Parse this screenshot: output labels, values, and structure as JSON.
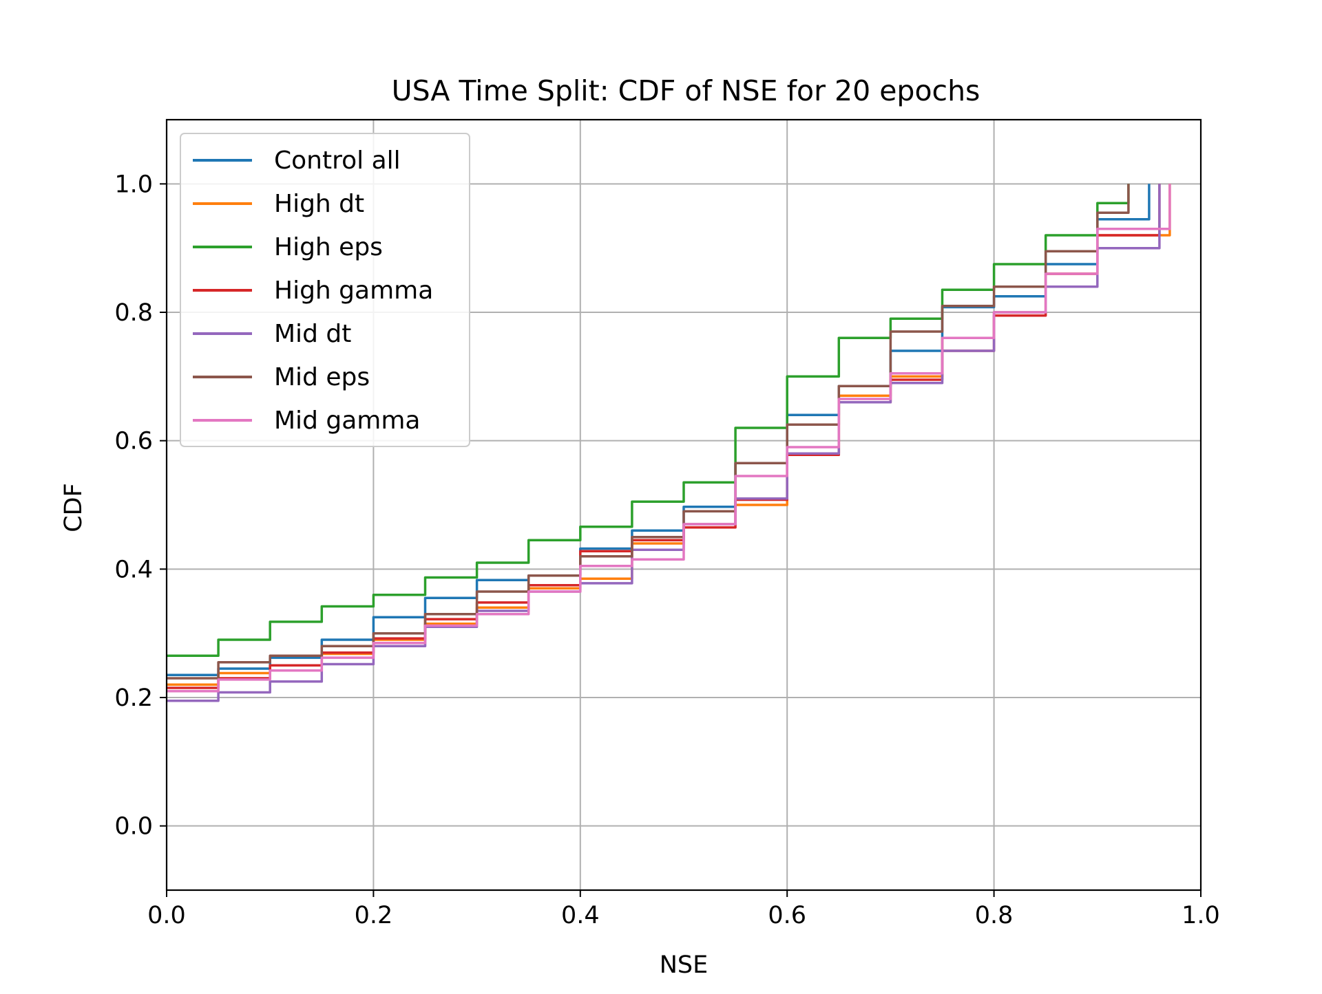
{
  "chart_data": {
    "type": "line",
    "title": "USA Time Split: CDF of NSE for 20 epochs",
    "xlabel": "NSE",
    "ylabel": "CDF",
    "xlim": [
      0.0,
      1.0
    ],
    "ylim": [
      -0.1,
      1.1
    ],
    "xticks": [
      0.0,
      0.2,
      0.4,
      0.6,
      0.8,
      1.0
    ],
    "xtick_labels": [
      "0.0",
      "0.2",
      "0.4",
      "0.6",
      "0.8",
      "1.0"
    ],
    "yticks": [
      0.0,
      0.2,
      0.4,
      0.6,
      0.8,
      1.0
    ],
    "ytick_labels": [
      "0.0",
      "0.2",
      "0.4",
      "0.6",
      "0.8",
      "1.0"
    ],
    "grid": true,
    "legend_position": "upper-left",
    "series": [
      {
        "name": "Control all",
        "color": "#1f77b4",
        "x": [
          0.0,
          0.05,
          0.1,
          0.15,
          0.2,
          0.25,
          0.3,
          0.35,
          0.4,
          0.45,
          0.5,
          0.55,
          0.6,
          0.65,
          0.7,
          0.75,
          0.8,
          0.85,
          0.9,
          0.95
        ],
        "y": [
          0.235,
          0.245,
          0.262,
          0.29,
          0.325,
          0.355,
          0.383,
          0.39,
          0.432,
          0.46,
          0.497,
          0.565,
          0.64,
          0.685,
          0.74,
          0.808,
          0.825,
          0.875,
          0.945,
          1.0
        ]
      },
      {
        "name": "High dt",
        "color": "#ff7f0e",
        "x": [
          0.0,
          0.05,
          0.1,
          0.15,
          0.2,
          0.25,
          0.3,
          0.35,
          0.4,
          0.45,
          0.5,
          0.55,
          0.6,
          0.65,
          0.7,
          0.75,
          0.8,
          0.85,
          0.9,
          0.97
        ],
        "y": [
          0.22,
          0.238,
          0.25,
          0.268,
          0.29,
          0.315,
          0.34,
          0.37,
          0.385,
          0.44,
          0.47,
          0.5,
          0.58,
          0.67,
          0.7,
          0.76,
          0.8,
          0.86,
          0.92,
          1.0
        ]
      },
      {
        "name": "High eps",
        "color": "#2ca02c",
        "x": [
          0.0,
          0.05,
          0.1,
          0.15,
          0.2,
          0.25,
          0.3,
          0.35,
          0.4,
          0.45,
          0.5,
          0.55,
          0.6,
          0.65,
          0.7,
          0.75,
          0.8,
          0.85,
          0.9,
          0.93
        ],
        "y": [
          0.265,
          0.29,
          0.318,
          0.342,
          0.36,
          0.387,
          0.41,
          0.445,
          0.466,
          0.505,
          0.535,
          0.62,
          0.7,
          0.76,
          0.79,
          0.835,
          0.875,
          0.92,
          0.97,
          1.0
        ]
      },
      {
        "name": "High gamma",
        "color": "#d62728",
        "x": [
          0.0,
          0.05,
          0.1,
          0.15,
          0.2,
          0.25,
          0.3,
          0.35,
          0.4,
          0.45,
          0.5,
          0.55,
          0.6,
          0.65,
          0.7,
          0.75,
          0.8,
          0.85,
          0.9,
          0.96
        ],
        "y": [
          0.215,
          0.23,
          0.25,
          0.27,
          0.292,
          0.322,
          0.348,
          0.375,
          0.428,
          0.445,
          0.465,
          0.508,
          0.578,
          0.66,
          0.695,
          0.74,
          0.795,
          0.86,
          0.92,
          1.0
        ]
      },
      {
        "name": "Mid dt",
        "color": "#9467bd",
        "x": [
          0.0,
          0.05,
          0.1,
          0.15,
          0.2,
          0.25,
          0.3,
          0.35,
          0.4,
          0.45,
          0.5,
          0.55,
          0.6,
          0.65,
          0.7,
          0.75,
          0.8,
          0.85,
          0.9,
          0.96
        ],
        "y": [
          0.195,
          0.208,
          0.225,
          0.252,
          0.28,
          0.31,
          0.335,
          0.365,
          0.378,
          0.43,
          0.47,
          0.51,
          0.58,
          0.66,
          0.69,
          0.74,
          0.8,
          0.84,
          0.9,
          1.0
        ]
      },
      {
        "name": "Mid eps",
        "color": "#8c564b",
        "x": [
          0.0,
          0.05,
          0.1,
          0.15,
          0.2,
          0.25,
          0.3,
          0.35,
          0.4,
          0.45,
          0.5,
          0.55,
          0.6,
          0.65,
          0.7,
          0.75,
          0.8,
          0.85,
          0.9,
          0.93
        ],
        "y": [
          0.23,
          0.255,
          0.265,
          0.28,
          0.3,
          0.33,
          0.365,
          0.39,
          0.42,
          0.45,
          0.49,
          0.565,
          0.625,
          0.685,
          0.77,
          0.81,
          0.84,
          0.895,
          0.955,
          1.0
        ]
      },
      {
        "name": "Mid gamma",
        "color": "#e377c2",
        "x": [
          0.0,
          0.05,
          0.1,
          0.15,
          0.2,
          0.25,
          0.3,
          0.35,
          0.4,
          0.45,
          0.5,
          0.55,
          0.6,
          0.65,
          0.7,
          0.75,
          0.8,
          0.85,
          0.9,
          0.97
        ],
        "y": [
          0.21,
          0.228,
          0.242,
          0.262,
          0.285,
          0.312,
          0.33,
          0.365,
          0.405,
          0.415,
          0.47,
          0.545,
          0.59,
          0.665,
          0.705,
          0.76,
          0.8,
          0.86,
          0.93,
          1.0
        ]
      }
    ]
  }
}
